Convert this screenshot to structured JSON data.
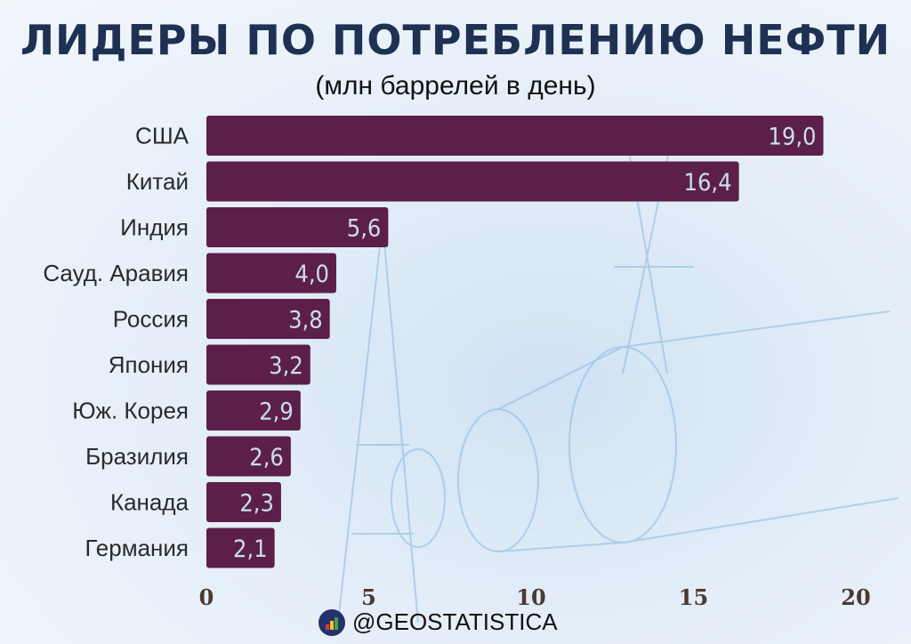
{
  "title": "ЛИДЕРЫ ПО ПОТРЕБЛЕНИЮ НЕФТИ",
  "subtitle": "(млн баррелей в день)",
  "footer": {
    "handle": "@GEOSTATISTICA",
    "icon": "bar-chart-logo-icon"
  },
  "colors": {
    "bar": "#5c1f4a",
    "value_label": "#c9ddf2",
    "title": "#1f3152"
  },
  "chart_data": {
    "type": "bar",
    "orientation": "horizontal",
    "title": "ЛИДЕРЫ ПО ПОТРЕБЛЕНИЮ НЕФТИ",
    "subtitle": "(млн баррелей в день)",
    "categories": [
      "США",
      "Китай",
      "Индия",
      "Сауд. Аравия",
      "Россия",
      "Япония",
      "Юж. Корея",
      "Бразилия",
      "Канада",
      "Германия"
    ],
    "values": [
      19.0,
      16.4,
      5.6,
      4.0,
      3.8,
      3.2,
      2.9,
      2.6,
      2.3,
      2.1
    ],
    "value_labels": [
      "19,0",
      "16,4",
      "5,6",
      "4,0",
      "3,8",
      "3,2",
      "2,9",
      "2,6",
      "2,3",
      "2,1"
    ],
    "xlim": [
      0,
      20
    ],
    "xticks": [
      0,
      5,
      10,
      15,
      20
    ],
    "xtick_labels": [
      "0",
      "5",
      "10",
      "15",
      "20"
    ],
    "grid": false,
    "legend": "none"
  }
}
